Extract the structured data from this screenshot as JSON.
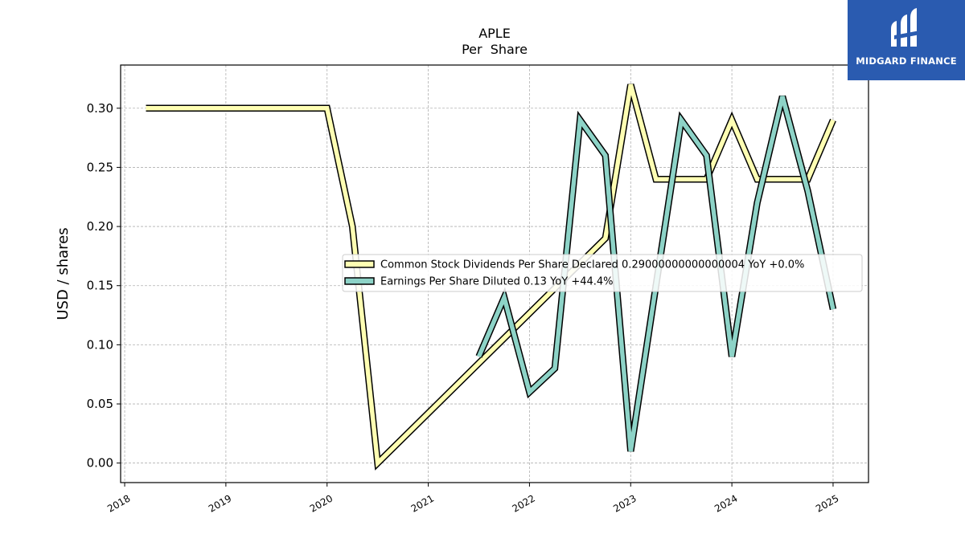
{
  "brand": {
    "name": "MIDGARD FINANCE",
    "color": "#2a5bb0"
  },
  "chart_data": {
    "type": "line",
    "title": "APLE",
    "subtitle": "Per  Share",
    "ylabel": "USD / shares",
    "xlabel": "",
    "xlim": [
      2017.96,
      2025.35
    ],
    "ylim": [
      -0.0165,
      0.3365
    ],
    "xticks": [
      2018,
      2019,
      2020,
      2021,
      2022,
      2023,
      2024,
      2025
    ],
    "xtick_labels": [
      "2018",
      "2019",
      "2020",
      "2021",
      "2022",
      "2023",
      "2024",
      "2025"
    ],
    "yticks": [
      0.0,
      0.05,
      0.1,
      0.15,
      0.2,
      0.25,
      0.3
    ],
    "ytick_labels": [
      "0.00",
      "0.05",
      "0.10",
      "0.15",
      "0.20",
      "0.25",
      "0.30"
    ],
    "grid": true,
    "legend_position": "center-right",
    "series": [
      {
        "name": "Common Stock Dividends Per Share Declared  0.29000000000000004 YoY +0.0%",
        "color": "#ffffb3",
        "x": [
          2018.21,
          2020.0,
          2020.25,
          2020.5,
          2022.75,
          2023.0,
          2023.25,
          2023.5,
          2023.75,
          2024.0,
          2024.25,
          2024.5,
          2024.75,
          2025.0
        ],
        "values": [
          0.3,
          0.3,
          0.2,
          0.0,
          0.19,
          0.32,
          0.24,
          0.24,
          0.24,
          0.29,
          0.24,
          0.24,
          0.24,
          0.29
        ]
      },
      {
        "name": "Earnings Per Share Diluted  0.13 YoY +44.4%",
        "color": "#8dd3c7",
        "x": [
          2021.5,
          2021.75,
          2022.0,
          2022.25,
          2022.5,
          2022.75,
          2023.0,
          2023.25,
          2023.5,
          2023.75,
          2024.0,
          2024.25,
          2024.5,
          2024.75,
          2025.0
        ],
        "values": [
          0.09,
          0.14,
          0.06,
          0.08,
          0.29,
          0.26,
          0.01,
          0.15,
          0.29,
          0.26,
          0.09,
          0.22,
          0.31,
          0.23,
          0.13
        ]
      }
    ]
  }
}
